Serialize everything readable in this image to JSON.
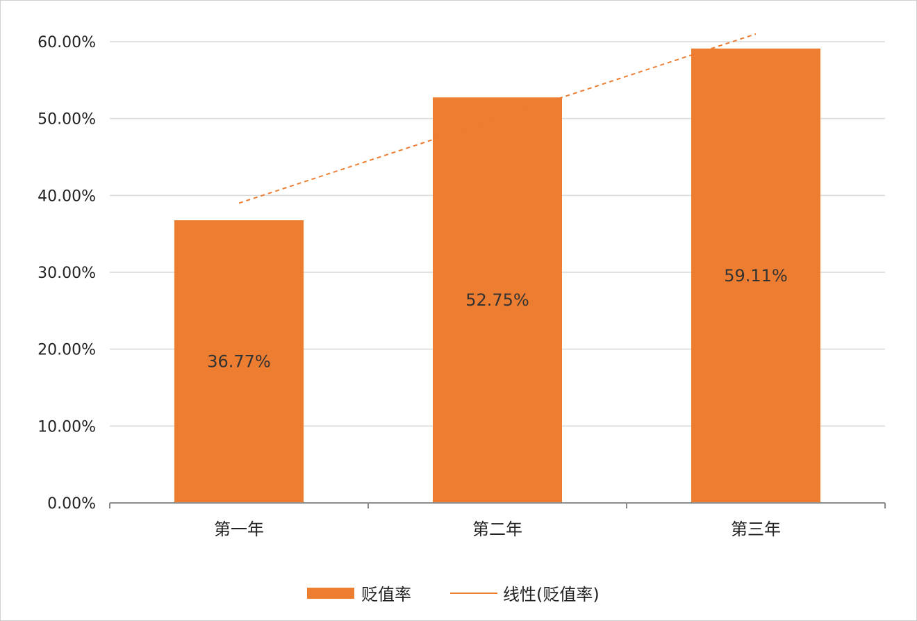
{
  "chart_data": {
    "type": "bar",
    "categories": [
      "第一年",
      "第二年",
      "第三年"
    ],
    "series": [
      {
        "name": "贬值率",
        "values": [
          36.77,
          52.75,
          59.11
        ],
        "data_labels": [
          "36.77%",
          "52.75%",
          "59.11%"
        ],
        "color": "#ED7D31"
      }
    ],
    "trendline": {
      "name": "线性(贬值率)",
      "type": "linear",
      "style": "dashed",
      "color": "#ED7D31",
      "values": [
        39.0,
        50.0,
        61.0
      ]
    },
    "yticks": [
      "0.00%",
      "10.00%",
      "20.00%",
      "30.00%",
      "40.00%",
      "50.00%",
      "60.00%"
    ],
    "ylim": [
      0,
      60
    ],
    "grid": true,
    "legend_position": "bottom",
    "title": "",
    "xlabel": "",
    "ylabel": ""
  }
}
